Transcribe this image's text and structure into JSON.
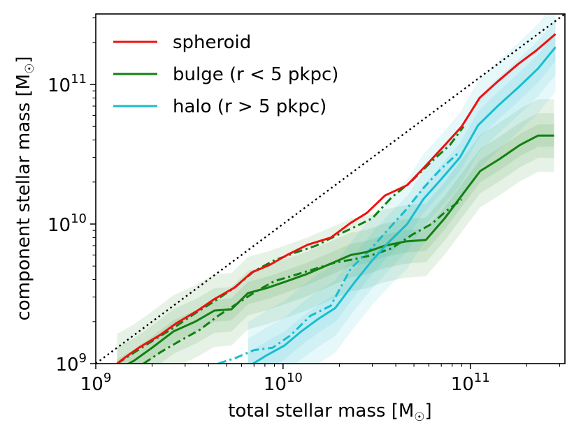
{
  "chart_data": {
    "type": "line",
    "xscale": "log",
    "yscale": "log",
    "xlim": [
      1000000000,
      320000000000
    ],
    "ylim": [
      1000000000,
      320000000000
    ],
    "xlabel_main": "total stellar mass [M",
    "xlabel_close": "]",
    "ylabel_main": "component stellar mass [M",
    "ylabel_close": "]",
    "unit_symbol": "☉",
    "x_ticks": [
      {
        "value": 1000000000,
        "base": "10",
        "exp": "9"
      },
      {
        "value": 10000000000,
        "base": "10",
        "exp": "10"
      },
      {
        "value": 100000000000,
        "base": "10",
        "exp": "11"
      }
    ],
    "y_ticks": [
      {
        "value": 1000000000,
        "base": "10",
        "exp": "9"
      },
      {
        "value": 10000000000,
        "base": "10",
        "exp": "10"
      },
      {
        "value": 100000000000,
        "base": "10",
        "exp": "11"
      }
    ],
    "one_to_one_line": {
      "style": "dotted",
      "color": "#000000"
    },
    "series": [
      {
        "name": "spheroid",
        "color": "#ee1111",
        "style": "solid",
        "in_legend": true,
        "x": [
          1300000000.0,
          1450000000.0,
          1700000000.0,
          2200000000.0,
          2700000000.0,
          3500000000.0,
          4300000000.0,
          5500000000.0,
          6800000000.0,
          8500000000.0,
          10500000000.0,
          13500000000.0,
          18000000000.0,
          23000000000.0,
          28000000000.0,
          35000000000.0,
          46000000000.0,
          56000000000.0,
          72000000000.0,
          90000000000.0,
          112000000000.0,
          140000000000.0,
          180000000000.0,
          225000000000.0,
          285000000000.0
        ],
        "y": [
          1000000000.0,
          1120000000.0,
          1300000000.0,
          1600000000.0,
          1950000000.0,
          2400000000.0,
          2900000000.0,
          3500000000.0,
          4500000000.0,
          5100000000.0,
          6000000000.0,
          7100000000.0,
          8000000000.0,
          10200000000.0,
          12000000000.0,
          16000000000.0,
          19000000000.0,
          25000000000.0,
          36000000000.0,
          50000000000.0,
          80000000000.0,
          105000000000.0,
          140000000000.0,
          175000000000.0,
          230000000000.0
        ]
      },
      {
        "name": "bulge (r < 5 pkpc)",
        "color": "#118011",
        "style": "solid",
        "in_legend": true,
        "x": [
          1300000000.0,
          1600000000.0,
          2000000000.0,
          2600000000.0,
          3400000000.0,
          4300000000.0,
          5300000000.0,
          6500000000.0,
          8300000000.0,
          10500000000.0,
          13500000000.0,
          18000000000.0,
          23000000000.0,
          28000000000.0,
          35000000000.0,
          45000000000.0,
          58000000000.0,
          73000000000.0,
          90000000000.0,
          113000000000.0,
          142000000000.0,
          185000000000.0,
          230000000000.0,
          280000000000.0
        ],
        "y": [
          900000000.0,
          1050000000.0,
          1300000000.0,
          1700000000.0,
          2000000000.0,
          2400000000.0,
          2450000000.0,
          3200000000.0,
          3500000000.0,
          3900000000.0,
          4400000000.0,
          5200000000.0,
          6000000000.0,
          6300000000.0,
          7000000000.0,
          7500000000.0,
          7700000000.0,
          11000000000.0,
          16000000000.0,
          24000000000.0,
          29000000000.0,
          37000000000.0,
          43000000000.0,
          43000000000.0
        ]
      },
      {
        "name": "halo (r > 5 pkpc)",
        "color": "#17becf",
        "style": "solid",
        "in_legend": true,
        "x": [
          6500000000.0,
          8200000000.0,
          10200000000.0,
          12500000000.0,
          15500000000.0,
          19000000000.0,
          24000000000.0,
          30000000000.0,
          37000000000.0,
          46000000000.0,
          56000000000.0,
          70000000000.0,
          88000000000.0,
          110000000000.0,
          140000000000.0,
          180000000000.0,
          230000000000.0,
          285000000000.0
        ],
        "y": [
          950000000.0,
          1150000000.0,
          1350000000.0,
          1700000000.0,
          2100000000.0,
          2500000000.0,
          3800000000.0,
          5500000000.0,
          7500000000.0,
          10000000000.0,
          15000000000.0,
          21000000000.0,
          30000000000.0,
          51000000000.0,
          70000000000.0,
          95000000000.0,
          130000000000.0,
          185000000000.0
        ]
      },
      {
        "name": "spheroid (secondary)",
        "color": "#118011",
        "style": "dashdot",
        "in_legend": false,
        "x": [
          1300000000.0,
          1600000000.0,
          2000000000.0,
          2600000000.0,
          3400000000.0,
          4300000000.0,
          5500000000.0,
          7000000000.0,
          9000000000.0,
          11500000000.0,
          15000000000.0,
          19000000000.0,
          24000000000.0,
          30000000000.0,
          38000000000.0,
          48000000000.0,
          62000000000.0,
          78000000000.0,
          92000000000.0
        ],
        "y": [
          1000000000.0,
          1200000000.0,
          1450000000.0,
          1800000000.0,
          2300000000.0,
          2800000000.0,
          3500000000.0,
          4600000000.0,
          5500000000.0,
          6200000000.0,
          7000000000.0,
          8200000000.0,
          9500000000.0,
          11000000000.0,
          15500000000.0,
          20000000000.0,
          28000000000.0,
          37000000000.0,
          50000000000.0
        ]
      },
      {
        "name": "bulge (secondary)",
        "color": "#118011",
        "style": "dashdot",
        "in_legend": false,
        "x": [
          1800000000.0,
          2200000000.0,
          2800000000.0,
          3600000000.0,
          4500000000.0,
          5700000000.0,
          7200000000.0,
          9000000000.0,
          11500000000.0,
          15000000000.0,
          19000000000.0,
          24000000000.0,
          30000000000.0,
          38000000000.0,
          49000000000.0,
          62000000000.0,
          75000000000.0,
          90000000000.0
        ],
        "y": [
          1000000000.0,
          1200000000.0,
          1450000000.0,
          1750000000.0,
          2200000000.0,
          2700000000.0,
          3300000000.0,
          3900000000.0,
          4300000000.0,
          4800000000.0,
          5300000000.0,
          5600000000.0,
          6000000000.0,
          6700000000.0,
          8400000000.0,
          10000000000.0,
          12500000000.0,
          15000000000.0
        ]
      },
      {
        "name": "halo (secondary)",
        "color": "#17becf",
        "style": "dashdot",
        "in_legend": false,
        "x": [
          4500000000.0,
          5600000000.0,
          7000000000.0,
          8800000000.0,
          11000000000.0,
          14000000000.0,
          18000000000.0,
          23000000000.0,
          29000000000.0,
          36000000000.0,
          45000000000.0,
          56000000000.0,
          70000000000.0,
          88000000000.0
        ],
        "y": [
          1000000000.0,
          1100000000.0,
          1250000000.0,
          1300000000.0,
          1600000000.0,
          2200000000.0,
          2600000000.0,
          4800000000.0,
          6500000000.0,
          9000000000.0,
          12500000000.0,
          18000000000.0,
          25000000000.0,
          33000000000.0
        ]
      }
    ],
    "bands": [
      {
        "name": "bulge band",
        "color": "#118011",
        "center_series": "bulge (r < 5 pkpc)",
        "widths_dex": [
          0.08,
          0.16,
          0.26
        ],
        "opacity": 0.1
      },
      {
        "name": "halo band",
        "color": "#17becf",
        "center_series": "halo (r > 5 pkpc)",
        "widths_dex": [
          0.1,
          0.2,
          0.32
        ],
        "opacity": 0.1
      }
    ],
    "legend": {
      "position": "top-left"
    },
    "grid": false
  }
}
